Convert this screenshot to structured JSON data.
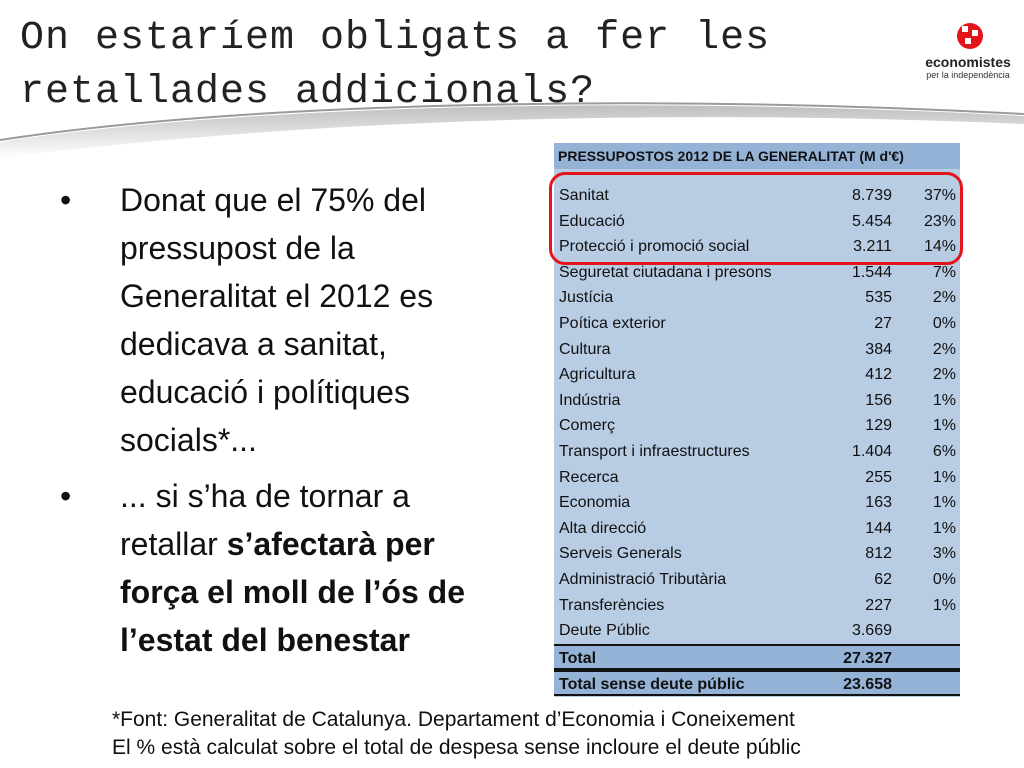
{
  "title": "On estaríem obligats a fer les retallades addicionals?",
  "logo": {
    "name": "economistes",
    "subtitle": "per la independència",
    "accent": "#e4141b"
  },
  "bullets": [
    {
      "text": "Donat que el 75% del pressupost de la Generalitat el 2012 es dedicava a sanitat, educació i polítiques socials*..."
    },
    {
      "text_plain": "... si s’ha de tornar a retallar ",
      "text_bold": "s’afectarà per força el moll de l’ós de l’estat del benestar"
    }
  ],
  "bullet_symbol": "•",
  "table": {
    "header": "PRESSUPOSTOS 2012 DE LA GENERALITAT (M d'€)",
    "rows": [
      {
        "name": "Sanitat",
        "value": "8.739",
        "pct": "37%"
      },
      {
        "name": "Educació",
        "value": "5.454",
        "pct": "23%"
      },
      {
        "name": "Protecció i promoció social",
        "value": "3.211",
        "pct": "14%"
      },
      {
        "name": "Seguretat ciutadana i presons",
        "value": "1.544",
        "pct": "7%"
      },
      {
        "name": "Justícia",
        "value": "535",
        "pct": "2%"
      },
      {
        "name": "Poítica exterior",
        "value": "27",
        "pct": "0%"
      },
      {
        "name": "Cultura",
        "value": "384",
        "pct": "2%"
      },
      {
        "name": "Agricultura",
        "value": "412",
        "pct": "2%"
      },
      {
        "name": "Indústria",
        "value": "156",
        "pct": "1%"
      },
      {
        "name": "Comerç",
        "value": "129",
        "pct": "1%"
      },
      {
        "name": "Transport i infraestructures",
        "value": "1.404",
        "pct": "6%"
      },
      {
        "name": "Recerca",
        "value": "255",
        "pct": "1%"
      },
      {
        "name": "Economia",
        "value": "163",
        "pct": "1%"
      },
      {
        "name": "Alta direcció",
        "value": "144",
        "pct": "1%"
      },
      {
        "name": "Serveis Generals",
        "value": "812",
        "pct": "3%"
      },
      {
        "name": "Administració Tributària",
        "value": "62",
        "pct": "0%"
      },
      {
        "name": "Transferències",
        "value": "227",
        "pct": "1%"
      },
      {
        "name": "Deute Públic",
        "value": "3.669",
        "pct": ""
      }
    ],
    "totals": [
      {
        "name": "Total",
        "value": "27.327"
      },
      {
        "name": "Total sense deute públic",
        "value": "23.658"
      }
    ],
    "highlight_color": "#e4141b"
  },
  "footnote": [
    "*Font: Generalitat de Catalunya. Departament d’Economia i Coneixement",
    "El % està calculat sobre el total de despesa sense incloure el deute públic"
  ]
}
